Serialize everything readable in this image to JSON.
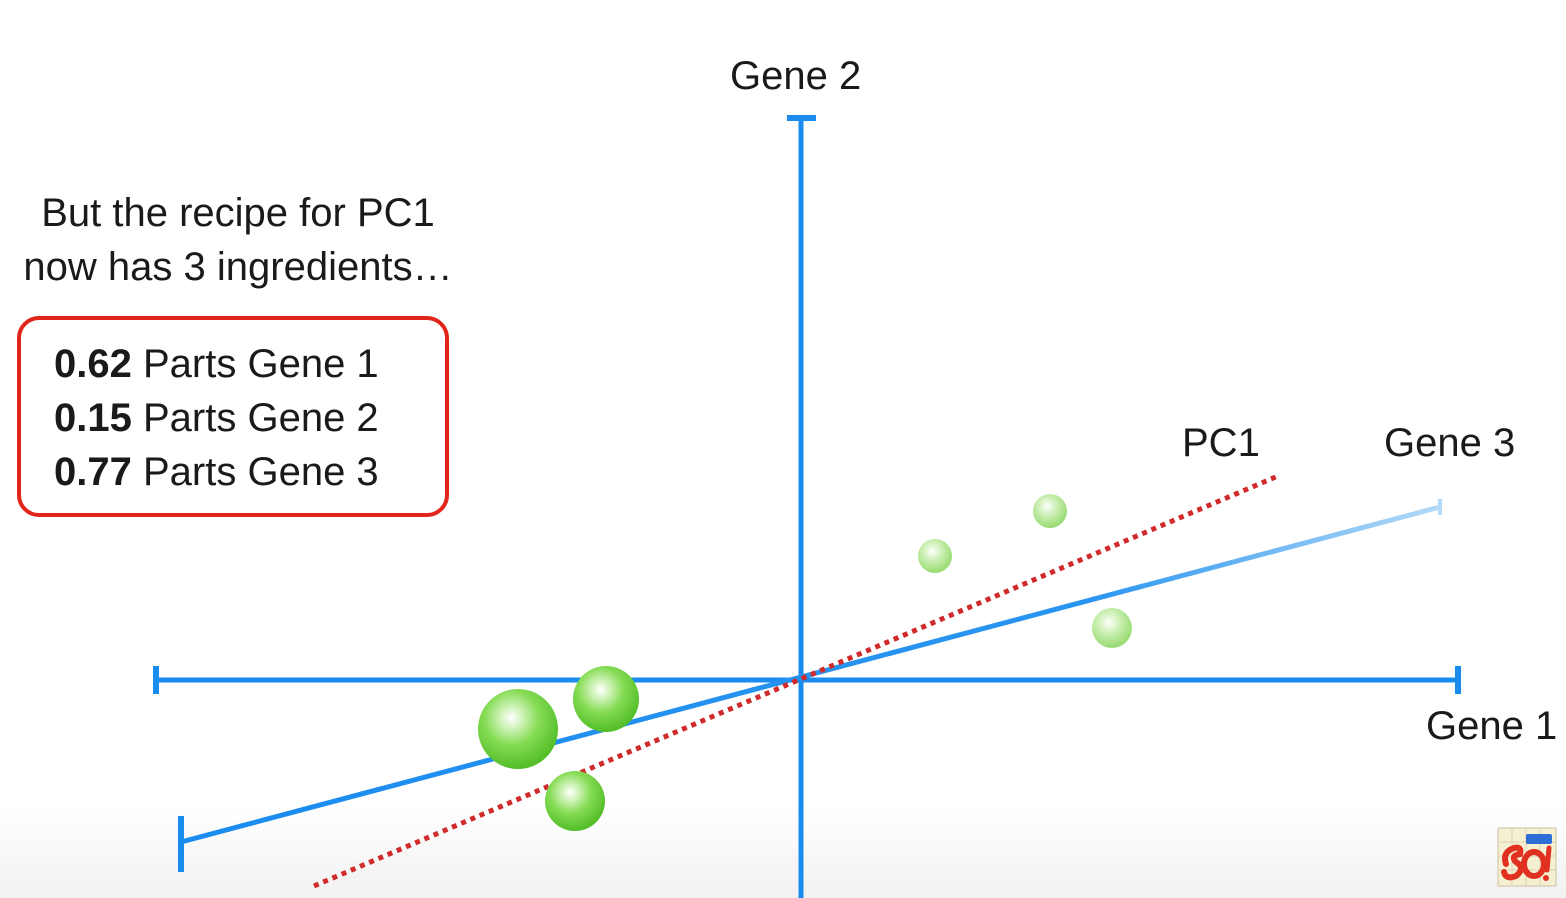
{
  "axes": {
    "gene1_label": "Gene 1",
    "gene2_label": "Gene 2",
    "gene3_label": "Gene 3",
    "pc1_label": "PC1"
  },
  "intro": {
    "line1": "But the recipe for PC1",
    "line2": "now has 3 ingredients…"
  },
  "recipe": [
    {
      "coefficient": "0.62",
      "text": "Parts Gene 1"
    },
    {
      "coefficient": "0.15",
      "text": "Parts Gene 2"
    },
    {
      "coefficient": "0.77",
      "text": "Parts Gene 3"
    }
  ],
  "colors": {
    "axis": "#1a8cf0",
    "pc1_line": "#d12a2a",
    "data_point": "#6fd43f",
    "recipe_border": "#e1251b"
  },
  "logo": {
    "icon": "statquest-logo-icon"
  }
}
